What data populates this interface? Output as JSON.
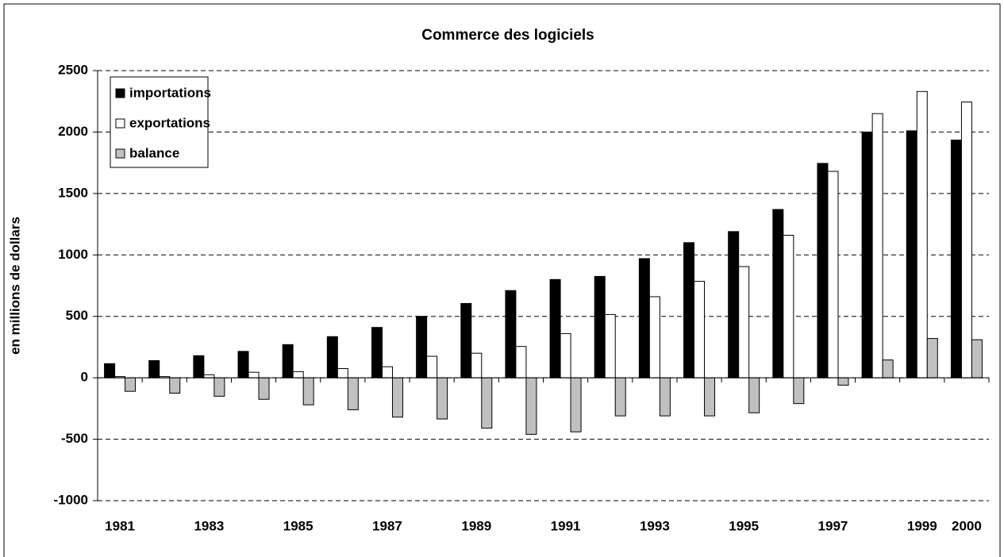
{
  "chart_data": {
    "type": "bar",
    "title": "Commerce des logiciels",
    "y_label": "en millions de dollars",
    "categories": [
      "1981",
      null,
      "1983",
      null,
      "1985",
      null,
      "1987",
      null,
      "1989",
      null,
      "1991",
      null,
      "1993",
      null,
      "1995",
      null,
      "1997",
      null,
      "1999",
      "2000"
    ],
    "series": [
      {
        "name": "importations",
        "color": "#000000",
        "values": [
          115,
          140,
          180,
          215,
          270,
          335,
          410,
          500,
          605,
          710,
          800,
          825,
          970,
          1100,
          1190,
          1370,
          1745,
          2000,
          2010,
          1935
        ]
      },
      {
        "name": "exportations",
        "color": "#ffffff",
        "values": [
          10,
          10,
          25,
          45,
          50,
          75,
          90,
          175,
          200,
          255,
          360,
          515,
          660,
          785,
          905,
          1160,
          1680,
          2150,
          2330,
          2245
        ]
      },
      {
        "name": "balance",
        "color": "#c0c0c0",
        "values": [
          -110,
          -125,
          -150,
          -175,
          -220,
          -260,
          -320,
          -335,
          -410,
          -460,
          -440,
          -310,
          -310,
          -310,
          -285,
          -210,
          -60,
          145,
          320,
          310
        ]
      }
    ],
    "ylim": [
      -1000,
      2500
    ],
    "yticks": [
      -1000,
      -500,
      0,
      500,
      1000,
      1500,
      2000,
      2500
    ],
    "grid": true,
    "legend": "upper left"
  }
}
